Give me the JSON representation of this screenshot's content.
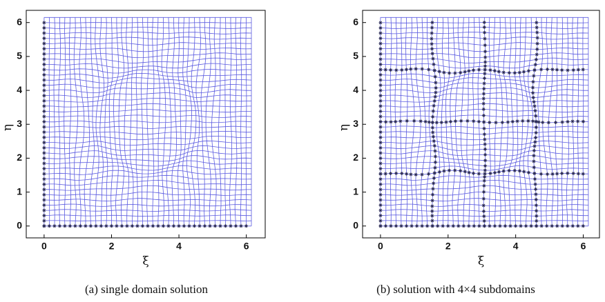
{
  "chart_data": [
    {
      "type": "mesh",
      "caption": "(a) single domain solution",
      "xlabel": "ξ",
      "ylabel": "η",
      "xlim": [
        -0.53,
        6.56
      ],
      "ylim": [
        -0.35,
        6.36
      ],
      "xticks": [
        0,
        2,
        4,
        6
      ],
      "yticks": [
        0,
        1,
        2,
        3,
        4,
        5,
        6
      ],
      "color": "#5a5ae0"
    },
    {
      "type": "mesh",
      "caption": "(b) solution with 4×4 subdomains",
      "xlabel": "ξ",
      "ylabel": "η",
      "xlim": [
        -0.53,
        6.48
      ],
      "ylim": [
        -0.35,
        6.36
      ],
      "xticks": [
        0,
        2,
        4,
        6
      ],
      "yticks": [
        0,
        1,
        2,
        3,
        4,
        5,
        6
      ],
      "color": "#5a5ae0"
    }
  ]
}
